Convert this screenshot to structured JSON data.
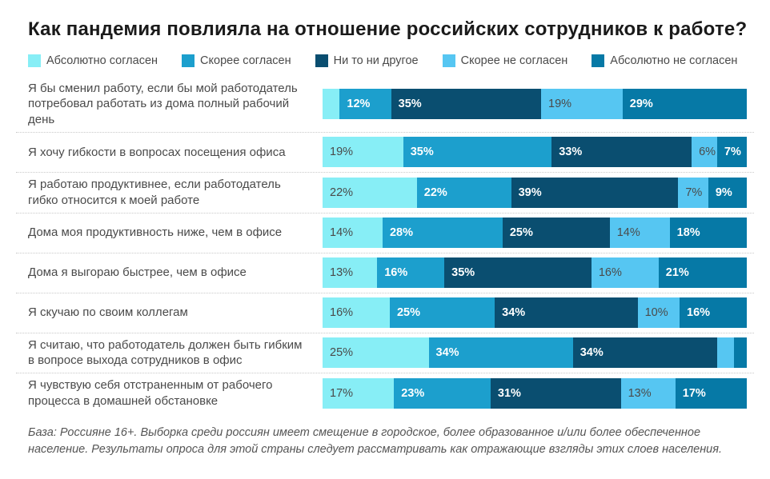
{
  "title": "Как пандемия повлияла на отношение российских сотрудников к работе?",
  "legend": [
    {
      "label": "Абсолютно согласен",
      "color": "#87EEF6",
      "text": "dark"
    },
    {
      "label": "Скорее согласен",
      "color": "#1C9FCD",
      "text": "light"
    },
    {
      "label": "Ни то ни другое",
      "color": "#0A4E70",
      "text": "light"
    },
    {
      "label": "Скорее не согласен",
      "color": "#56C6F2",
      "text": "dark"
    },
    {
      "label": "Абсолютно не согласен",
      "color": "#0679A6",
      "text": "light"
    }
  ],
  "chart_data": {
    "type": "bar",
    "orientation": "horizontal-stacked",
    "unit": "%",
    "stack_total": 100,
    "legend_position": "top",
    "series_names": [
      "Абсолютно согласен",
      "Скорее согласен",
      "Ни то ни другое",
      "Скорее не согласен",
      "Абсолютно не согласен"
    ],
    "rows": [
      {
        "category": "Я бы сменил работу, если бы мой работодатель потребовал работать из дома полный рабочий день",
        "values": [
          4,
          12,
          35,
          19,
          29
        ],
        "labels": [
          "",
          "12%",
          "35%",
          "19%",
          "29%"
        ]
      },
      {
        "category": "Я хочу гибкости в вопросах посещения офиса",
        "values": [
          19,
          35,
          33,
          6,
          7
        ],
        "labels": [
          "19%",
          "35%",
          "33%",
          "6%",
          "7%"
        ]
      },
      {
        "category": "Я работаю продуктивнее, если работодатель гибко относится к моей работе",
        "values": [
          22,
          22,
          39,
          7,
          9
        ],
        "labels": [
          "22%",
          "22%",
          "39%",
          "7%",
          "9%"
        ]
      },
      {
        "category": "Дома моя продуктивность ниже, чем в офисе",
        "values": [
          14,
          28,
          25,
          14,
          18
        ],
        "labels": [
          "14%",
          "28%",
          "25%",
          "14%",
          "18%"
        ]
      },
      {
        "category": "Дома я выгораю быстрее, чем в офисе",
        "values": [
          13,
          16,
          35,
          16,
          21
        ],
        "labels": [
          "13%",
          "16%",
          "35%",
          "16%",
          "21%"
        ]
      },
      {
        "category": "Я скучаю по своим коллегам",
        "values": [
          16,
          25,
          34,
          10,
          16
        ],
        "labels": [
          "16%",
          "25%",
          "34%",
          "10%",
          "16%"
        ]
      },
      {
        "category": "Я считаю, что работодатель должен быть гибким в вопросе выхода сотрудников в офис",
        "values": [
          25,
          34,
          34,
          4,
          3
        ],
        "labels": [
          "25%",
          "34%",
          "34%",
          "",
          ""
        ]
      },
      {
        "category": "Я чувствую себя отстраненным от рабочего процесса в домашней обстановке",
        "values": [
          17,
          23,
          31,
          13,
          17
        ],
        "labels": [
          "17%",
          "23%",
          "31%",
          "13%",
          "17%"
        ]
      }
    ]
  },
  "footer": "База: Россияне 16+. Выборка среди россиян имеет смещение в городское, более образованное и/или более обеспеченное население. Результаты опроса для этой страны следует рассматривать как отражающие взгляды этих слоев населения."
}
